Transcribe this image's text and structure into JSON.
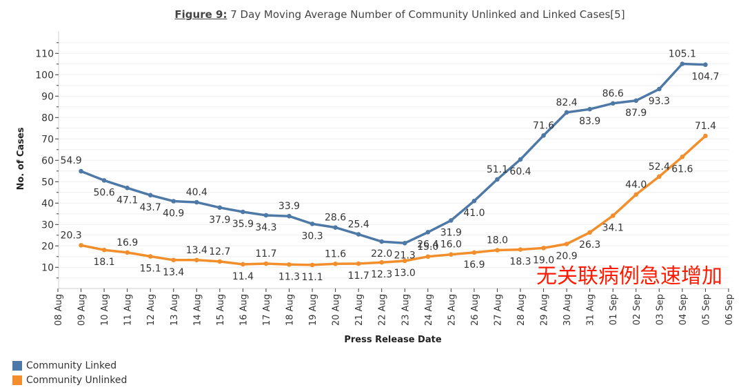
{
  "title": {
    "prefix": "Figure 9:",
    "text": " 7 Day Moving Average Number of Community Unlinked and Linked Cases[5]"
  },
  "overlay_text": "无关联病例急速增加",
  "chart_data": {
    "type": "line",
    "xlabel": "Press Release Date",
    "ylabel": "No. of Cases",
    "ylim": [
      0,
      118
    ],
    "yticks": [
      10,
      20,
      30,
      40,
      50,
      60,
      70,
      80,
      90,
      100,
      110
    ],
    "grid": true,
    "legend_position": "bottom-left",
    "x": [
      "08 Aug",
      "09 Aug",
      "10 Aug",
      "11 Aug",
      "12 Aug",
      "13 Aug",
      "14 Aug",
      "15 Aug",
      "16 Aug",
      "17 Aug",
      "18 Aug",
      "19 Aug",
      "20 Aug",
      "21 Aug",
      "22 Aug",
      "23 Aug",
      "24 Aug",
      "25 Aug",
      "26 Aug",
      "27 Aug",
      "28 Aug",
      "29 Aug",
      "30 Aug",
      "31 Aug",
      "01 Sep",
      "02 Sep",
      "03 Sep",
      "04 Sep",
      "05 Sep",
      "06 Sep"
    ],
    "series": [
      {
        "name": "Community Linked",
        "color": "#4e79a7",
        "values": [
          null,
          54.9,
          50.6,
          47.1,
          43.7,
          40.9,
          40.4,
          37.9,
          35.9,
          34.3,
          33.9,
          30.3,
          28.6,
          25.4,
          22.0,
          21.3,
          26.4,
          31.9,
          41.0,
          51.1,
          60.4,
          71.6,
          82.4,
          83.9,
          86.6,
          87.9,
          93.3,
          105.1,
          104.7,
          null
        ],
        "labels": [
          "",
          "54.9",
          "50.6",
          "47.1",
          "43.7",
          "40.9",
          "40.4",
          "37.9",
          "35.9",
          "34.3",
          "33.9",
          "30.3",
          "28.6",
          "25.4",
          "22.0",
          "21.3",
          "26.4",
          "31.9",
          "41.0",
          "51.1",
          "60.4",
          "71.6",
          "82.4",
          "83.9",
          "86.6",
          "87.9",
          "93.3",
          "105.1",
          "104.7",
          ""
        ]
      },
      {
        "name": "Community Unlinked",
        "color": "#f28e2b",
        "values": [
          null,
          20.3,
          18.1,
          16.9,
          15.1,
          13.4,
          13.4,
          12.7,
          11.4,
          11.7,
          11.3,
          11.1,
          11.6,
          11.7,
          12.3,
          13.0,
          15.0,
          16.0,
          16.9,
          18.0,
          18.3,
          19.0,
          20.9,
          26.3,
          34.1,
          44.0,
          52.4,
          61.6,
          71.4,
          null
        ],
        "labels": [
          "",
          "20.3",
          "18.1",
          "16.9",
          "15.1",
          "13.4",
          "13.4",
          "12.7",
          "11.4",
          "11.7",
          "11.3",
          "11.1",
          "11.6",
          "11.7",
          "12.3",
          "13.0",
          "15.0",
          "16.0",
          "16.9",
          "18.0",
          "18.3",
          "19.0",
          "20.9",
          "26.3",
          "34.1",
          "44.0",
          "52.4",
          "61.6",
          "71.4",
          ""
        ]
      }
    ]
  }
}
